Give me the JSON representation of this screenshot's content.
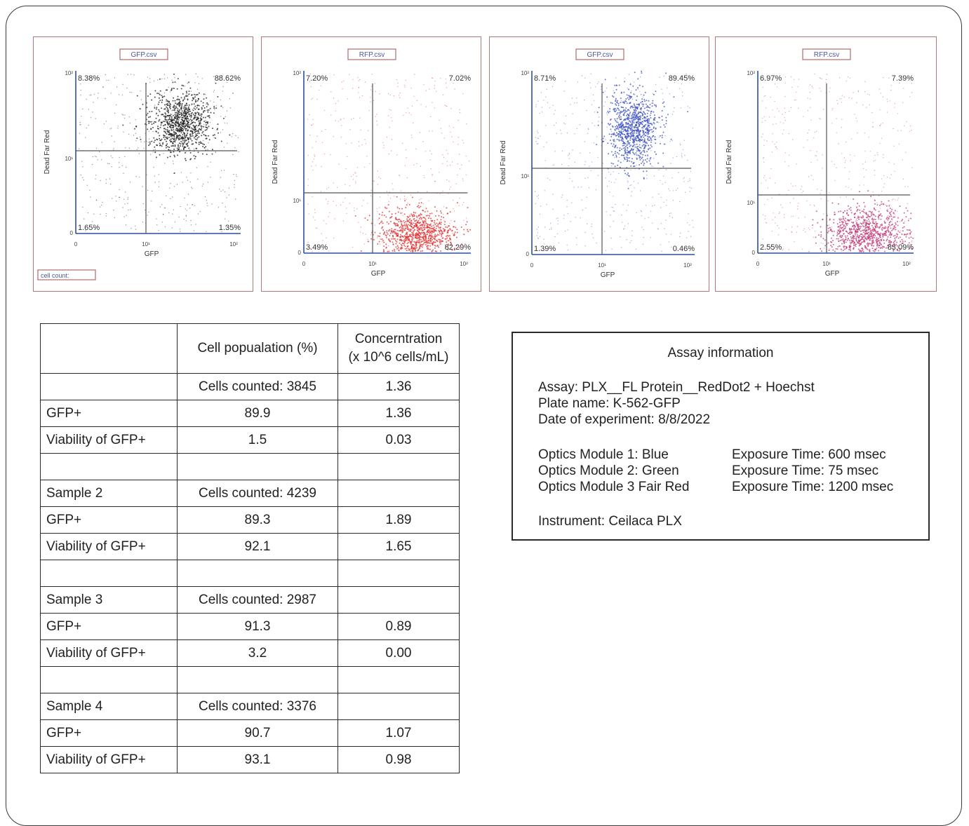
{
  "plots": [
    {
      "file_label": "GFP.csv",
      "x_axis_label": "GFP",
      "y_axis_label": "Dead Far Red",
      "x_ticks": [
        "0",
        "10¹",
        "10²"
      ],
      "y_ticks": [
        "0",
        "10¹",
        "10²"
      ],
      "quadrants": {
        "upper_left": "8.38%",
        "upper_right": "88.62%",
        "lower_left": "1.65%",
        "lower_right": "1.35%"
      },
      "extra_label": "cell count:",
      "dot_color": "#1a1a1a"
    },
    {
      "file_label": "RFP.csv",
      "x_axis_label": "GFP",
      "y_axis_label": "Dead Far Red",
      "x_ticks": [
        "0",
        "10¹",
        "10²"
      ],
      "y_ticks": [
        "0",
        "10¹",
        "10²"
      ],
      "quadrants": {
        "upper_left": "7.20%",
        "upper_right": "7.02%",
        "lower_left": "3.49%",
        "lower_right": "82.29%"
      },
      "extra_label": "",
      "dot_color": "#e03030"
    },
    {
      "file_label": "GFP.csv",
      "x_axis_label": "GFP",
      "y_axis_label": "Dead Far Red",
      "x_ticks": [
        "0",
        "10¹",
        "10²"
      ],
      "y_ticks": [
        "0",
        "10¹",
        "10²"
      ],
      "quadrants": {
        "upper_left": "8.71%",
        "upper_right": "89.45%",
        "lower_left": "1.39%",
        "lower_right": "0.46%"
      },
      "extra_label": "",
      "dot_color": "#3a4fc0"
    },
    {
      "file_label": "RFP.csv",
      "x_axis_label": "GFP",
      "y_axis_label": "Dead Far Red",
      "x_ticks": [
        "0",
        "10¹",
        "10²"
      ],
      "y_ticks": [
        "0",
        "10¹",
        "10²"
      ],
      "quadrants": {
        "upper_left": "6.97%",
        "upper_right": "7.39%",
        "lower_left": "2.55%",
        "lower_right": "83.09%"
      },
      "extra_label": "",
      "dot_color": "#c03a78"
    }
  ],
  "table": {
    "headers": [
      "",
      "Cell popualation (%)",
      "Concerntration",
      "(x 10^6 cells/mL)"
    ],
    "rows": [
      [
        "",
        "Cells counted: 3845",
        "1.36"
      ],
      [
        "GFP+",
        "89.9",
        "1.36"
      ],
      [
        "Viability of GFP+",
        "1.5",
        "0.03"
      ],
      [
        "",
        "",
        ""
      ],
      [
        "Sample 2",
        "Cells counted: 4239",
        ""
      ],
      [
        "GFP+",
        "89.3",
        "1.89"
      ],
      [
        "Viability of GFP+",
        "92.1",
        "1.65"
      ],
      [
        "",
        "",
        ""
      ],
      [
        "Sample 3",
        "Cells counted: 2987",
        ""
      ],
      [
        "GFP+",
        "91.3",
        "0.89"
      ],
      [
        "Viability of GFP+",
        "3.2",
        "0.00"
      ],
      [
        "",
        "",
        ""
      ],
      [
        "Sample 4",
        "Cells counted: 3376",
        ""
      ],
      [
        "GFP+",
        "90.7",
        "1.07"
      ],
      [
        "Viability of GFP+",
        "93.1",
        "0.98"
      ]
    ]
  },
  "assay": {
    "title": "Assay information",
    "assay": "Assay: PLX__FL Protein__RedDot2 + Hoechst",
    "plate": "Plate name: K-562-GFP",
    "date": "Date of experiment: 8/8/2022",
    "optics": [
      {
        "module": "Optics Module 1: Blue",
        "exposure": "Exposure Time: 600 msec"
      },
      {
        "module": "Optics Module 2: Green",
        "exposure": "Exposure Time: 75 msec"
      },
      {
        "module": "Optics Module 3 Fair Red",
        "exposure": "Exposure Time: 1200 msec"
      }
    ],
    "instrument": "Instrument: Ceilaca PLX"
  }
}
